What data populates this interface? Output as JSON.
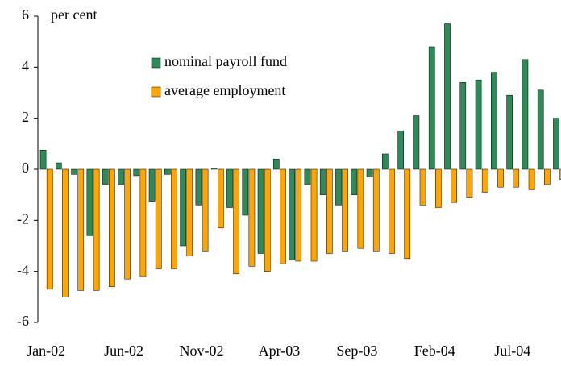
{
  "chart_data": {
    "type": "bar",
    "annotation": "per cent",
    "categories": [
      "Jan-02",
      null,
      null,
      null,
      null,
      "Jun-02",
      null,
      null,
      null,
      null,
      "Nov-02",
      null,
      null,
      null,
      null,
      "Apr-03",
      null,
      null,
      null,
      null,
      "Sep-03",
      null,
      null,
      null,
      null,
      "Feb-04",
      null,
      null,
      null,
      null,
      "Jul-04",
      null,
      null,
      null
    ],
    "series": [
      {
        "name": "nominal payroll fund",
        "color": "#2e8b57",
        "values": [
          0.75,
          0.25,
          -0.2,
          -2.6,
          -0.6,
          -0.6,
          -0.25,
          -1.25,
          -0.2,
          -3.0,
          -1.4,
          0.05,
          -1.5,
          -1.8,
          -3.3,
          0.4,
          -3.55,
          -0.6,
          -1.0,
          -1.4,
          -1.0,
          -0.3,
          0.6,
          1.5,
          2.1,
          4.8,
          5.7,
          3.4,
          3.5,
          3.8,
          2.9,
          4.3,
          3.1,
          2.0
        ]
      },
      {
        "name": "average employment",
        "color": "#ffa500",
        "values": [
          -4.7,
          -5.0,
          -4.75,
          -4.75,
          -4.6,
          -4.3,
          -4.2,
          -3.9,
          -3.9,
          -3.4,
          -3.2,
          -2.3,
          -4.1,
          -3.8,
          -4.0,
          -3.7,
          -3.6,
          -3.6,
          -3.3,
          -3.2,
          -3.1,
          -3.2,
          -3.3,
          -3.5,
          -1.4,
          -1.5,
          -1.3,
          -1.1,
          -0.9,
          -0.7,
          -0.7,
          -0.8,
          -0.6,
          -0.4
        ]
      }
    ],
    "ylim": [
      -6,
      6
    ],
    "yticks": [
      -6,
      -4,
      -2,
      0,
      2,
      4,
      6
    ],
    "grid": false
  }
}
